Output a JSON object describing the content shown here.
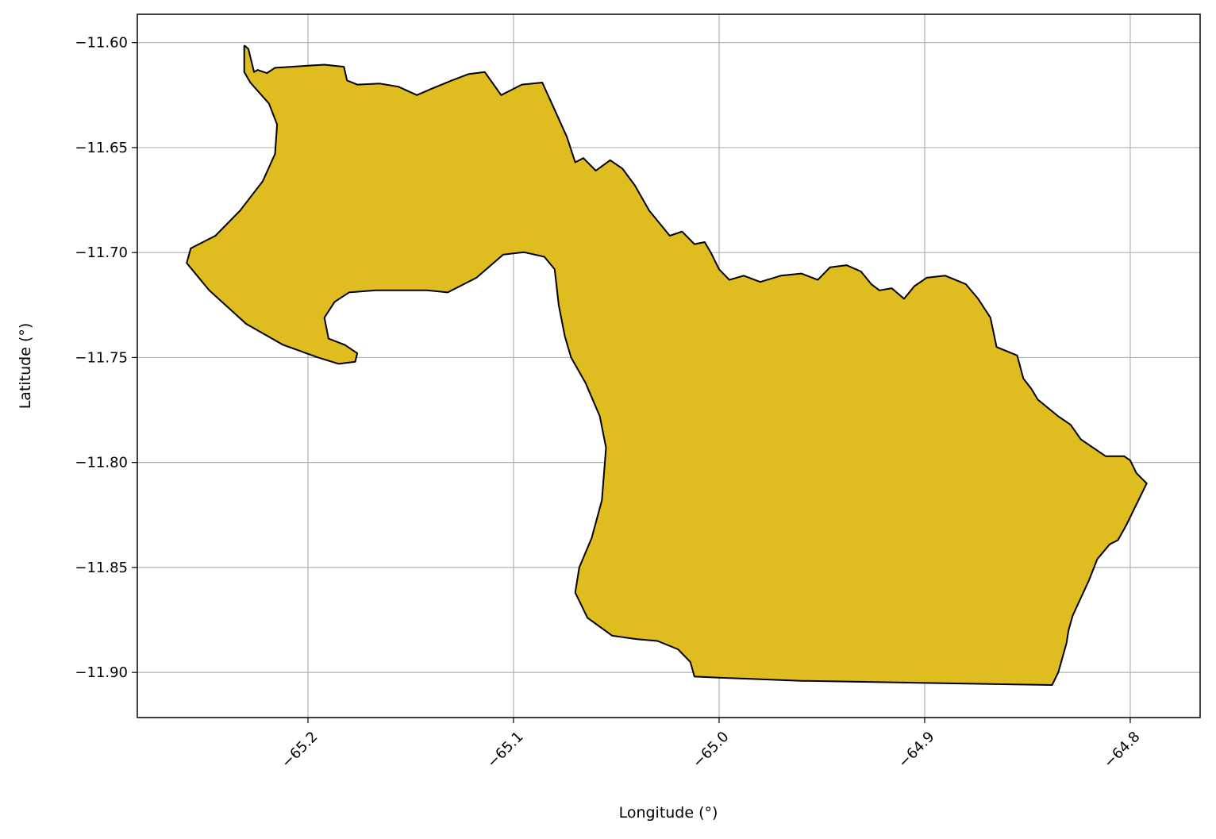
{
  "chart_data": {
    "type": "map",
    "xlabel": "Longitude (°)",
    "ylabel": "Latitude (°)",
    "xlim": [
      -65.283,
      -64.766
    ],
    "ylim": [
      -11.9215,
      -11.5865
    ],
    "x_ticks": [
      {
        "value": -65.2,
        "label": "−65.2"
      },
      {
        "value": -65.1,
        "label": "−65.1"
      },
      {
        "value": -65.0,
        "label": "−65.0"
      },
      {
        "value": -64.9,
        "label": "−64.9"
      },
      {
        "value": -64.8,
        "label": "−64.8"
      }
    ],
    "y_ticks": [
      {
        "value": -11.6,
        "label": "−11.60"
      },
      {
        "value": -11.65,
        "label": "−11.65"
      },
      {
        "value": -11.7,
        "label": "−11.70"
      },
      {
        "value": -11.75,
        "label": "−11.75"
      },
      {
        "value": -11.8,
        "label": "−11.80"
      },
      {
        "value": -11.85,
        "label": "−11.85"
      },
      {
        "value": -11.9,
        "label": "−11.90"
      }
    ],
    "grid": true,
    "region": {
      "fill": "#DFBC1F",
      "stroke": "#000000",
      "outline": [
        [
          -65.2307,
          -11.6015
        ],
        [
          -65.229,
          -11.603
        ],
        [
          -65.2262,
          -11.614
        ],
        [
          -65.2245,
          -11.613
        ],
        [
          -65.22,
          -11.6145
        ],
        [
          -65.216,
          -11.612
        ],
        [
          -65.208,
          -11.6115
        ],
        [
          -65.2,
          -11.611
        ],
        [
          -65.192,
          -11.6105
        ],
        [
          -65.1825,
          -11.6115
        ],
        [
          -65.181,
          -11.618
        ],
        [
          -65.176,
          -11.62
        ],
        [
          -65.165,
          -11.6195
        ],
        [
          -65.156,
          -11.621
        ],
        [
          -65.147,
          -11.625
        ],
        [
          -65.14,
          -11.622
        ],
        [
          -65.13,
          -11.618
        ],
        [
          -65.122,
          -11.615
        ],
        [
          -65.114,
          -11.614
        ],
        [
          -65.106,
          -11.625
        ],
        [
          -65.096,
          -11.62
        ],
        [
          -65.086,
          -11.619
        ],
        [
          -65.08,
          -11.632
        ],
        [
          -65.074,
          -11.645
        ],
        [
          -65.07,
          -11.657
        ],
        [
          -65.066,
          -11.655
        ],
        [
          -65.06,
          -11.661
        ],
        [
          -65.053,
          -11.656
        ],
        [
          -65.047,
          -11.66
        ],
        [
          -65.041,
          -11.668
        ],
        [
          -65.034,
          -11.68
        ],
        [
          -65.024,
          -11.692
        ],
        [
          -65.018,
          -11.69
        ],
        [
          -65.012,
          -11.696
        ],
        [
          -65.007,
          -11.695
        ],
        [
          -65.004,
          -11.7
        ],
        [
          -65.0,
          -11.708
        ],
        [
          -64.995,
          -11.713
        ],
        [
          -64.988,
          -11.711
        ],
        [
          -64.98,
          -11.714
        ],
        [
          -64.97,
          -11.711
        ],
        [
          -64.96,
          -11.71
        ],
        [
          -64.952,
          -11.713
        ],
        [
          -64.946,
          -11.707
        ],
        [
          -64.938,
          -11.706
        ],
        [
          -64.931,
          -11.709
        ],
        [
          -64.926,
          -11.715
        ],
        [
          -64.922,
          -11.718
        ],
        [
          -64.916,
          -11.717
        ],
        [
          -64.91,
          -11.722
        ],
        [
          -64.905,
          -11.716
        ],
        [
          -64.899,
          -11.712
        ],
        [
          -64.89,
          -11.711
        ],
        [
          -64.88,
          -11.715
        ],
        [
          -64.874,
          -11.722
        ],
        [
          -64.868,
          -11.731
        ],
        [
          -64.865,
          -11.745
        ],
        [
          -64.855,
          -11.749
        ],
        [
          -64.852,
          -11.76
        ],
        [
          -64.848,
          -11.765
        ],
        [
          -64.845,
          -11.77
        ],
        [
          -64.835,
          -11.778
        ],
        [
          -64.829,
          -11.782
        ],
        [
          -64.824,
          -11.789
        ],
        [
          -64.812,
          -11.797
        ],
        [
          -64.803,
          -11.797
        ],
        [
          -64.8,
          -11.799
        ],
        [
          -64.797,
          -11.805
        ],
        [
          -64.792,
          -11.81
        ],
        [
          -64.797,
          -11.82
        ],
        [
          -64.802,
          -11.83
        ],
        [
          -64.806,
          -11.837
        ],
        [
          -64.81,
          -11.839
        ],
        [
          -64.816,
          -11.846
        ],
        [
          -64.82,
          -11.856
        ],
        [
          -64.828,
          -11.873
        ],
        [
          -64.83,
          -11.88
        ],
        [
          -64.831,
          -11.886
        ],
        [
          -64.835,
          -11.9
        ],
        [
          -64.838,
          -11.906
        ],
        [
          -64.9,
          -11.905
        ],
        [
          -64.96,
          -11.904
        ],
        [
          -65.0,
          -11.9025
        ],
        [
          -65.012,
          -11.902
        ],
        [
          -65.014,
          -11.895
        ],
        [
          -65.02,
          -11.889
        ],
        [
          -65.03,
          -11.885
        ],
        [
          -65.04,
          -11.8842
        ],
        [
          -65.052,
          -11.8825
        ],
        [
          -65.064,
          -11.874
        ],
        [
          -65.07,
          -11.862
        ],
        [
          -65.068,
          -11.85
        ],
        [
          -65.062,
          -11.836
        ],
        [
          -65.057,
          -11.818
        ],
        [
          -65.055,
          -11.793
        ],
        [
          -65.058,
          -11.778
        ],
        [
          -65.065,
          -11.762
        ],
        [
          -65.072,
          -11.75
        ],
        [
          -65.075,
          -11.74
        ],
        [
          -65.078,
          -11.725
        ],
        [
          -65.08,
          -11.708
        ],
        [
          -65.085,
          -11.702
        ],
        [
          -65.095,
          -11.6998
        ],
        [
          -65.105,
          -11.701
        ],
        [
          -65.118,
          -11.712
        ],
        [
          -65.132,
          -11.719
        ],
        [
          -65.142,
          -11.718
        ],
        [
          -65.153,
          -11.718
        ],
        [
          -65.167,
          -11.718
        ],
        [
          -65.18,
          -11.719
        ],
        [
          -65.187,
          -11.7235
        ],
        [
          -65.192,
          -11.731
        ],
        [
          -65.19,
          -11.741
        ],
        [
          -65.182,
          -11.744
        ],
        [
          -65.176,
          -11.748
        ],
        [
          -65.177,
          -11.752
        ],
        [
          -65.185,
          -11.753
        ],
        [
          -65.195,
          -11.75
        ],
        [
          -65.212,
          -11.744
        ],
        [
          -65.23,
          -11.734
        ],
        [
          -65.248,
          -11.718
        ],
        [
          -65.259,
          -11.705
        ],
        [
          -65.257,
          -11.698
        ],
        [
          -65.245,
          -11.692
        ],
        [
          -65.233,
          -11.68
        ],
        [
          -65.222,
          -11.666
        ],
        [
          -65.216,
          -11.653
        ],
        [
          -65.215,
          -11.639
        ],
        [
          -65.219,
          -11.629
        ],
        [
          -65.228,
          -11.619
        ],
        [
          -65.231,
          -11.614
        ],
        [
          -65.231,
          -11.6015
        ]
      ]
    }
  }
}
